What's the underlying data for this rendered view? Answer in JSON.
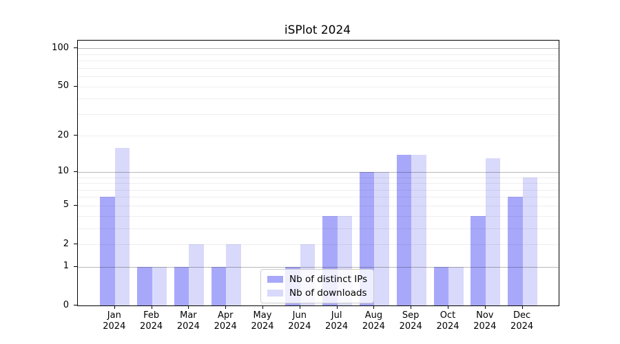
{
  "chart_data": {
    "type": "bar",
    "title": "iSPlot 2024",
    "categories": [
      "Jan",
      "Feb",
      "Mar",
      "Apr",
      "May",
      "Jun",
      "Jul",
      "Aug",
      "Sep",
      "Oct",
      "Nov",
      "Dec"
    ],
    "year_label": "2024",
    "series": [
      {
        "name": "Nb of distinct IPs",
        "color": "#a8a8fa",
        "values": [
          6,
          1,
          1,
          1,
          0,
          1,
          4,
          10,
          14,
          1,
          4,
          6
        ]
      },
      {
        "name": "Nb of downloads",
        "color": "#d9d9fb",
        "values": [
          16,
          1,
          2,
          2,
          0,
          2,
          4,
          10,
          14,
          1,
          13,
          9
        ]
      }
    ],
    "yscale": "log1p",
    "ylim": [
      0,
      115
    ],
    "yticks": [
      0,
      1,
      2,
      5,
      10,
      20,
      50,
      100
    ],
    "grid_major": [
      1,
      10,
      100
    ],
    "grid_minor": [
      2,
      3,
      4,
      5,
      6,
      7,
      8,
      9,
      20,
      30,
      40,
      50,
      60,
      70,
      80,
      90
    ],
    "legend_position": "lower-center",
    "grid_on": true
  }
}
